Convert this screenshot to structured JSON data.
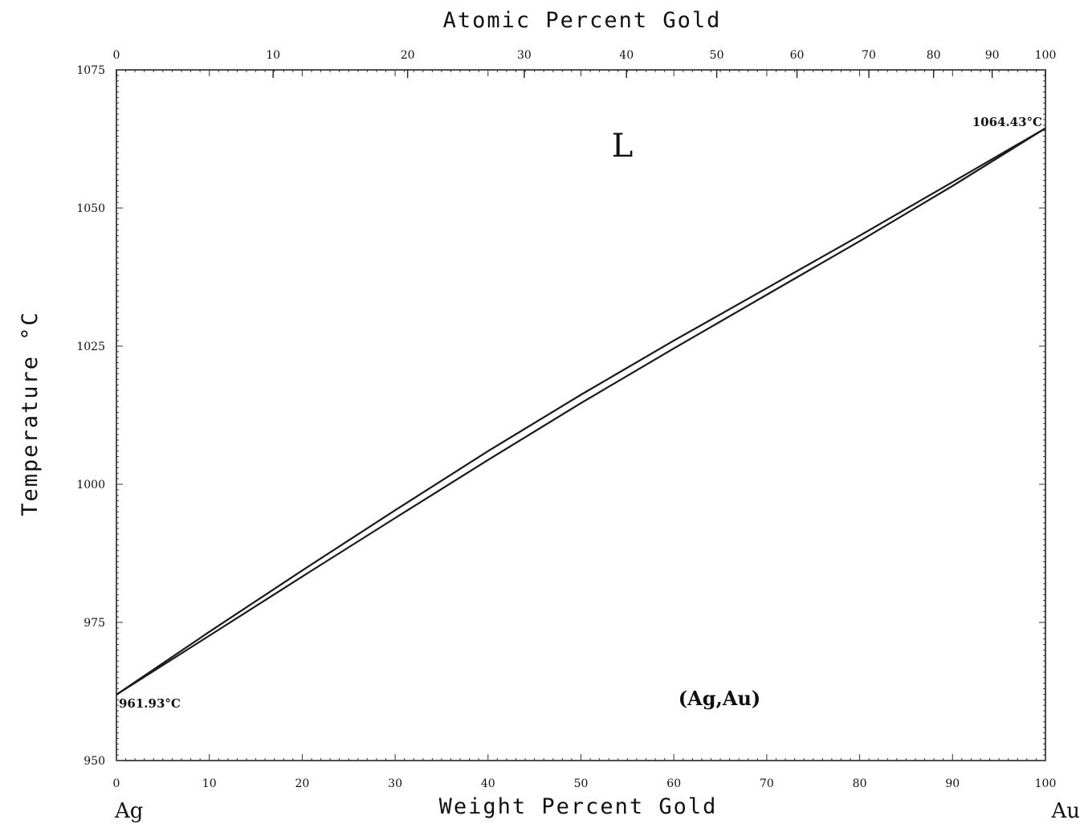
{
  "chart_data": {
    "type": "line",
    "title": "",
    "xlabel": "Weight Percent Gold",
    "x2label": "Atomic Percent Gold",
    "ylabel": "Temperature °C",
    "xlim": [
      0,
      100
    ],
    "ylim": [
      950,
      1075
    ],
    "x_ticks": [
      "0",
      "10",
      "20",
      "30",
      "40",
      "50",
      "60",
      "70",
      "80",
      "90",
      "100"
    ],
    "y_ticks": [
      "950",
      "975",
      "1000",
      "1025",
      "1050",
      "1075"
    ],
    "x2_ticks": [
      {
        "at_percent": 0,
        "label": "0"
      },
      {
        "at_percent": 10,
        "label": "10"
      },
      {
        "at_percent": 20,
        "label": "20"
      },
      {
        "at_percent": 30,
        "label": "30"
      },
      {
        "at_percent": 40,
        "label": "40"
      },
      {
        "at_percent": 50,
        "label": "50"
      },
      {
        "at_percent": 60,
        "label": "60"
      },
      {
        "at_percent": 70,
        "label": "70"
      },
      {
        "at_percent": 80,
        "label": "80"
      },
      {
        "at_percent": 90,
        "label": "90"
      },
      {
        "at_percent": 100,
        "label": "100"
      }
    ],
    "series": [
      {
        "x": [
          0,
          10,
          20,
          30,
          40,
          50,
          60,
          70,
          80,
          90,
          100
        ],
        "y": [
          961.93,
          973.3,
          984.4,
          995.3,
          1006.0,
          1016.2,
          1026.0,
          1035.5,
          1045.0,
          1054.7,
          1064.43
        ]
      },
      {
        "x": [
          0,
          10,
          20,
          30,
          40,
          50,
          60,
          70,
          80,
          90,
          100
        ],
        "y": [
          961.93,
          972.6,
          983.3,
          993.9,
          1004.4,
          1014.7,
          1024.6,
          1034.3,
          1044.0,
          1054.0,
          1064.43
        ]
      }
    ],
    "annotations": {
      "phase_liquid": "L",
      "phase_solid": "(Ag,Au)",
      "ag_melt": "961.93°C",
      "au_melt": "1064.43°C",
      "left_element": "Ag",
      "right_element": "Au"
    }
  }
}
